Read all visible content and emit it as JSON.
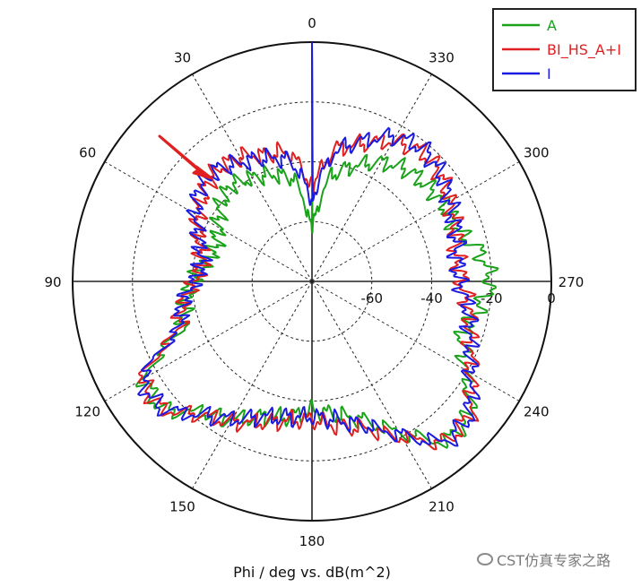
{
  "chart_data": {
    "type": "line",
    "subtype": "polar",
    "xlabel": "Phi / deg vs. dB(m^2)",
    "angular_ticks": [
      "0",
      "330",
      "300",
      "270",
      "240",
      "210",
      "180",
      "150",
      "120",
      "90",
      "60",
      "30"
    ],
    "angle_direction": "clockwise-decreasing (0 at top, 270 at right, 90 at left)",
    "radial_ticks": [
      "-60",
      "-40",
      "-20",
      "0"
    ],
    "radial_range": [
      -80,
      0
    ],
    "grid": true,
    "legend_position": "top-right",
    "series": [
      {
        "name": "A",
        "color": "#1aa21a",
        "phi": [
          0,
          10,
          20,
          30,
          40,
          50,
          60,
          70,
          80,
          90,
          100,
          110,
          120,
          130,
          140,
          150,
          160,
          170,
          180,
          190,
          200,
          210,
          220,
          230,
          240,
          250,
          260,
          270,
          280,
          290,
          300,
          310,
          320,
          330,
          340,
          350
        ],
        "values": [
          -64,
          -45,
          -42,
          -40,
          -38,
          -40,
          -44,
          -46,
          -44,
          -40,
          -37,
          -34,
          -15,
          -14,
          -23,
          -27,
          -32,
          -34,
          -37,
          -35,
          -31,
          -22,
          -10,
          -11,
          -21,
          -27,
          -24,
          -20,
          -23,
          -29,
          -29,
          -30,
          -31,
          -34,
          -39,
          -44
        ]
      },
      {
        "name": "BI_HS_A+I",
        "color": "#e02020",
        "phi": [
          0,
          10,
          20,
          30,
          40,
          50,
          60,
          70,
          80,
          90,
          100,
          110,
          120,
          130,
          140,
          150,
          160,
          170,
          180,
          190,
          200,
          210,
          220,
          230,
          240,
          250,
          260,
          270,
          280,
          290,
          300,
          310,
          320,
          330,
          340,
          350
        ],
        "values": [
          -49,
          -36,
          -35,
          -32,
          -31,
          -33,
          -36,
          -40,
          -43,
          -41,
          -36,
          -33,
          -14,
          -14,
          -22,
          -26,
          -30,
          -33,
          -34,
          -31,
          -28,
          -20,
          -10,
          -11,
          -19,
          -24,
          -27,
          -30,
          -31,
          -29,
          -27,
          -24,
          -23,
          -26,
          -31,
          -35
        ]
      },
      {
        "name": "I",
        "color": "#1a1ae0",
        "phi": [
          0,
          10,
          20,
          30,
          40,
          50,
          60,
          70,
          80,
          90,
          100,
          110,
          120,
          130,
          140,
          150,
          160,
          170,
          180,
          190,
          200,
          210,
          220,
          230,
          240,
          250,
          260,
          270,
          280,
          290,
          300,
          310,
          320,
          330,
          340,
          350
        ],
        "values": [
          -53,
          -39,
          -36,
          -34,
          -31,
          -31,
          -35,
          -40,
          -43,
          -41,
          -36,
          -33,
          -14,
          -14,
          -22,
          -27,
          -32,
          -34,
          -35,
          -33,
          -29,
          -21,
          -10,
          -11,
          -19,
          -24,
          -27,
          -31,
          -31,
          -29,
          -27,
          -24,
          -22,
          -24,
          -30,
          -36
        ]
      }
    ]
  },
  "watermark": {
    "text": "CST仿真专家之路",
    "icon": "wechat-icon"
  },
  "annotation": {
    "arrow_color": "#e02020"
  }
}
